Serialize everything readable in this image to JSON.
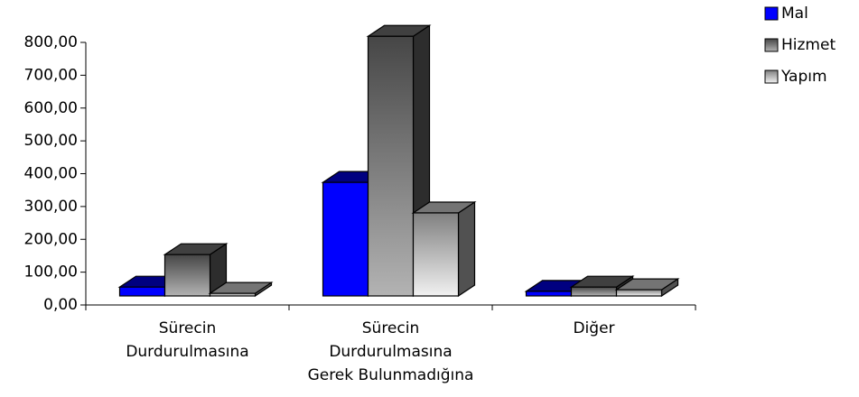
{
  "chart_data": {
    "type": "bar3d",
    "categories": [
      "Sürecin\nDurdurulmasına",
      "Sürecin\nDurdurulmasına\nGerek Bulunmadığına",
      "Diğer"
    ],
    "series": [
      {
        "name": "Mal",
        "color": "#0000ff",
        "values": [
          27,
          346,
          14
        ]
      },
      {
        "name": "Hizmet",
        "color": "#808080",
        "values": [
          126,
          791,
          27
        ]
      },
      {
        "name": "Yapım",
        "color": "#e8e8e8",
        "values": [
          8,
          253,
          19
        ]
      }
    ],
    "ylim": [
      0,
      800
    ],
    "yticks": [
      {
        "value": 0,
        "label": "0,00"
      },
      {
        "value": 100,
        "label": "100,00"
      },
      {
        "value": 200,
        "label": "200,00"
      },
      {
        "value": 300,
        "label": "300,00"
      },
      {
        "value": 400,
        "label": "400,00"
      },
      {
        "value": 500,
        "label": "500,00"
      },
      {
        "value": 600,
        "label": "600,00"
      },
      {
        "value": 700,
        "label": "700,00"
      },
      {
        "value": 800,
        "label": "800,00"
      }
    ],
    "legend": "top-right"
  }
}
